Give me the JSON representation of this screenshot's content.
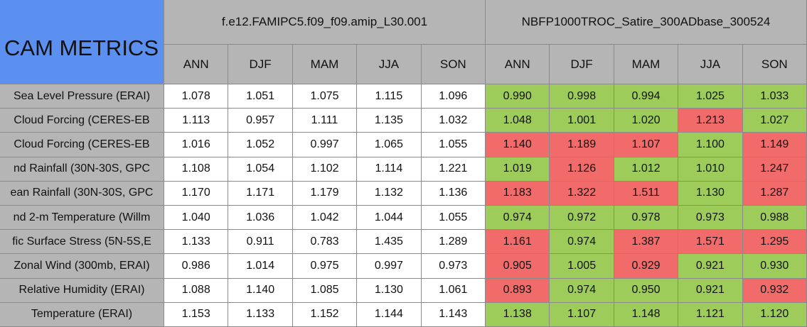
{
  "header": {
    "title": "CAM METRICS"
  },
  "groups": [
    {
      "name": "f.e12.FAMIPC5.f09_f09.amip_L30.001",
      "seasons": [
        "ANN",
        "DJF",
        "MAM",
        "JJA",
        "SON"
      ],
      "color": "#ffffff"
    },
    {
      "name": "NBFP1000TROC_Satire_300ADbase_300524",
      "seasons": [
        "ANN",
        "DJF",
        "MAM",
        "JJA",
        "SON"
      ]
    }
  ],
  "rows": [
    {
      "label": "Sea Level Pressure (ERAI)",
      "values": [
        "1.078",
        "1.051",
        "1.075",
        "1.115",
        "1.096",
        "0.990",
        "0.998",
        "0.994",
        "1.025",
        "1.033"
      ],
      "colors": [
        "#9dcc5a",
        "#9dcc5a",
        "#9dcc5a",
        "#9dcc5a",
        "#9dcc5a"
      ]
    },
    {
      "label": "Cloud Forcing (CERES-EB",
      "values": [
        "1.113",
        "0.957",
        "1.111",
        "1.135",
        "1.032",
        "1.048",
        "1.001",
        "1.020",
        "1.213",
        "1.027"
      ],
      "colors": [
        "#9dcc5a",
        "#9dcc5a",
        "#9dcc5a",
        "#f26b6b",
        "#9dcc5a"
      ]
    },
    {
      "label": "Cloud Forcing (CERES-EB",
      "values": [
        "1.016",
        "1.052",
        "0.997",
        "1.065",
        "1.055",
        "1.140",
        "1.189",
        "1.107",
        "1.100",
        "1.149"
      ],
      "colors": [
        "#f26b6b",
        "#f26b6b",
        "#f26b6b",
        "#9dcc5a",
        "#f26b6b"
      ]
    },
    {
      "label": "nd Rainfall (30N-30S, GPC",
      "values": [
        "1.108",
        "1.054",
        "1.102",
        "1.114",
        "1.221",
        "1.019",
        "1.126",
        "1.012",
        "1.010",
        "1.247"
      ],
      "colors": [
        "#9dcc5a",
        "#f26b6b",
        "#9dcc5a",
        "#9dcc5a",
        "#f26b6b"
      ]
    },
    {
      "label": "ean Rainfall (30N-30S, GPC",
      "values": [
        "1.170",
        "1.171",
        "1.179",
        "1.132",
        "1.136",
        "1.183",
        "1.322",
        "1.511",
        "1.130",
        "1.287"
      ],
      "colors": [
        "#f26b6b",
        "#f26b6b",
        "#f26b6b",
        "#9dcc5a",
        "#f26b6b"
      ]
    },
    {
      "label": "nd 2-m Temperature (Willm",
      "values": [
        "1.040",
        "1.036",
        "1.042",
        "1.044",
        "1.055",
        "0.974",
        "0.972",
        "0.978",
        "0.973",
        "0.988"
      ],
      "colors": [
        "#9dcc5a",
        "#9dcc5a",
        "#9dcc5a",
        "#9dcc5a",
        "#9dcc5a"
      ]
    },
    {
      "label": "fic Surface Stress (5N-5S,E",
      "values": [
        "1.133",
        "0.911",
        "0.783",
        "1.435",
        "1.289",
        "1.161",
        "0.974",
        "1.387",
        "1.571",
        "1.295"
      ],
      "colors": [
        "#f26b6b",
        "#9dcc5a",
        "#f26b6b",
        "#f26b6b",
        "#f26b6b"
      ]
    },
    {
      "label": "Zonal Wind (300mb, ERAI)",
      "values": [
        "0.986",
        "1.014",
        "0.975",
        "0.997",
        "0.973",
        "0.905",
        "1.005",
        "0.929",
        "0.921",
        "0.930"
      ],
      "colors": [
        "#f26b6b",
        "#9dcc5a",
        "#f26b6b",
        "#9dcc5a",
        "#9dcc5a"
      ]
    },
    {
      "label": "Relative Humidity (ERAI)",
      "values": [
        "1.088",
        "1.140",
        "1.085",
        "1.130",
        "1.061",
        "0.893",
        "0.974",
        "0.950",
        "0.921",
        "0.932"
      ],
      "colors": [
        "#f26b6b",
        "#9dcc5a",
        "#9dcc5a",
        "#9dcc5a",
        "#f26b6b"
      ]
    },
    {
      "label": "Temperature (ERAI)",
      "values": [
        "1.153",
        "1.133",
        "1.152",
        "1.144",
        "1.143",
        "1.138",
        "1.107",
        "1.148",
        "1.121",
        "1.120"
      ],
      "colors": [
        "#9dcc5a",
        "#9dcc5a",
        "#9dcc5a",
        "#9dcc5a",
        "#9dcc5a"
      ]
    }
  ]
}
